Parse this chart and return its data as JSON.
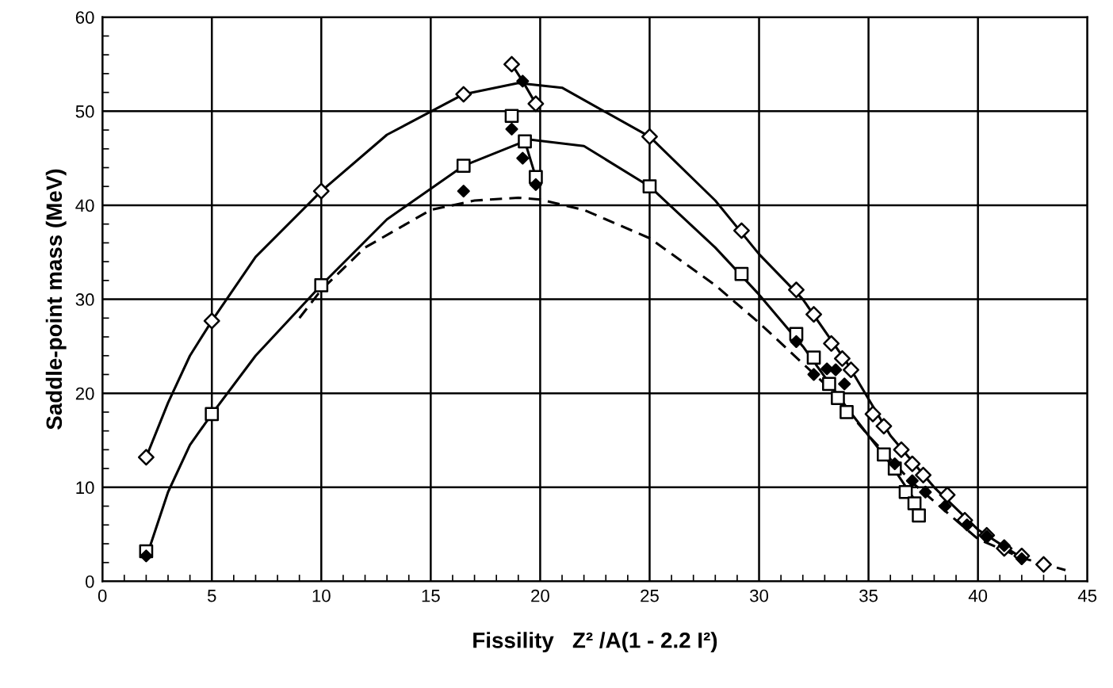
{
  "chart_data": {
    "type": "line",
    "xlabel": "Fissility   Z² /A(1 - 2.2 I²)",
    "ylabel": "Saddle-point mass (MeV)",
    "xlim": [
      0,
      45
    ],
    "xticks": [
      0,
      5,
      10,
      15,
      20,
      25,
      30,
      35,
      40,
      45
    ],
    "ylim": [
      0,
      60
    ],
    "yticks": [
      0,
      10,
      20,
      30,
      40,
      50,
      60
    ],
    "grid": true,
    "legend": false,
    "series": [
      {
        "color": "#000000",
        "line_style": "solid",
        "marker": "none",
        "x": [
          2,
          3,
          4,
          5,
          7,
          10,
          13,
          16.5,
          19,
          21,
          25,
          28,
          30,
          32,
          34,
          36,
          38,
          40,
          42
        ],
        "values": [
          13.2,
          19,
          24,
          27.7,
          34.5,
          41.5,
          47.5,
          51.8,
          53,
          52.5,
          47.3,
          40.5,
          34.8,
          30,
          23.3,
          15.5,
          10,
          5.5,
          2.5
        ]
      },
      {
        "color": "#000000",
        "line_style": "solid",
        "marker": "none",
        "x": [
          2,
          3,
          4,
          5,
          7,
          10,
          13,
          16.5,
          19.5,
          22,
          25,
          28,
          30,
          32,
          34,
          36,
          37.3
        ],
        "values": [
          2.5,
          9.5,
          14.5,
          17.8,
          24,
          31.5,
          38.5,
          44.2,
          47,
          46.3,
          42,
          35.5,
          30.5,
          25,
          18.5,
          12.5,
          8
        ]
      },
      {
        "color": "#000000",
        "line_style": "dashed",
        "marker": "none",
        "x": [
          9,
          10,
          12,
          15,
          17,
          19,
          20,
          22,
          25,
          28,
          30,
          33,
          35,
          37,
          40,
          42,
          44
        ],
        "values": [
          28,
          31,
          35.5,
          39.5,
          40.5,
          40.8,
          40.6,
          39.5,
          36.5,
          31.5,
          27.5,
          21,
          15.5,
          10.5,
          4.5,
          2.5,
          1.2
        ]
      },
      {
        "color": "#000000",
        "line_style": "solid",
        "marker": "none",
        "x": [
          18.7,
          19.2,
          19.8
        ],
        "values": [
          55,
          53.2,
          50.8
        ]
      },
      {
        "color": "#000000",
        "line_style": "solid",
        "marker": "none",
        "x": [
          19.3,
          19.8
        ],
        "values": [
          46.8,
          43
        ]
      },
      {
        "type": "scatter",
        "color": "#ffffff",
        "marker": "diamond",
        "x": [
          2,
          5,
          10,
          16.5,
          18.7,
          19.8,
          25,
          29.2,
          31.7,
          32.5,
          33.3,
          33.8,
          34.2,
          35.2,
          35.7,
          36.5,
          37,
          37.5,
          38.6,
          39.4,
          40.4,
          41.2,
          42,
          43
        ],
        "values": [
          13.2,
          27.7,
          41.5,
          51.8,
          55,
          50.8,
          47.3,
          37.3,
          31,
          28.4,
          25.3,
          23.7,
          22.5,
          17.8,
          16.5,
          14,
          12.5,
          11.3,
          9.2,
          6.5,
          4.9,
          3.5,
          2.7,
          1.8
        ]
      },
      {
        "type": "scatter",
        "color": "#ffffff",
        "marker": "square",
        "x": [
          2,
          5,
          10,
          16.5,
          18.7,
          19.3,
          19.8,
          25,
          29.2,
          31.7,
          32.5,
          33.2,
          33.6,
          34,
          35.7,
          36.2,
          36.7,
          37.1,
          37.3
        ],
        "values": [
          3.2,
          17.8,
          31.5,
          44.2,
          49.5,
          46.8,
          43,
          42,
          32.7,
          26.3,
          23.8,
          21,
          19.5,
          18,
          13.5,
          12,
          9.5,
          8.3,
          7
        ]
      },
      {
        "type": "scatter",
        "color": "#000000",
        "marker": "diamond",
        "x": [
          2,
          16.5,
          18.7,
          19.2,
          19.8,
          19.2,
          31.7,
          32.5,
          33.1,
          33.5,
          33.9,
          36.2,
          37,
          37.6,
          38.5,
          39.5,
          40.4,
          41.2,
          42
        ],
        "values": [
          2.7,
          41.5,
          48.1,
          45,
          42.2,
          53.2,
          25.5,
          22,
          22.6,
          22.5,
          21,
          12.5,
          10.7,
          9.5,
          8,
          6,
          4.8,
          3.8,
          2.4
        ]
      }
    ]
  }
}
